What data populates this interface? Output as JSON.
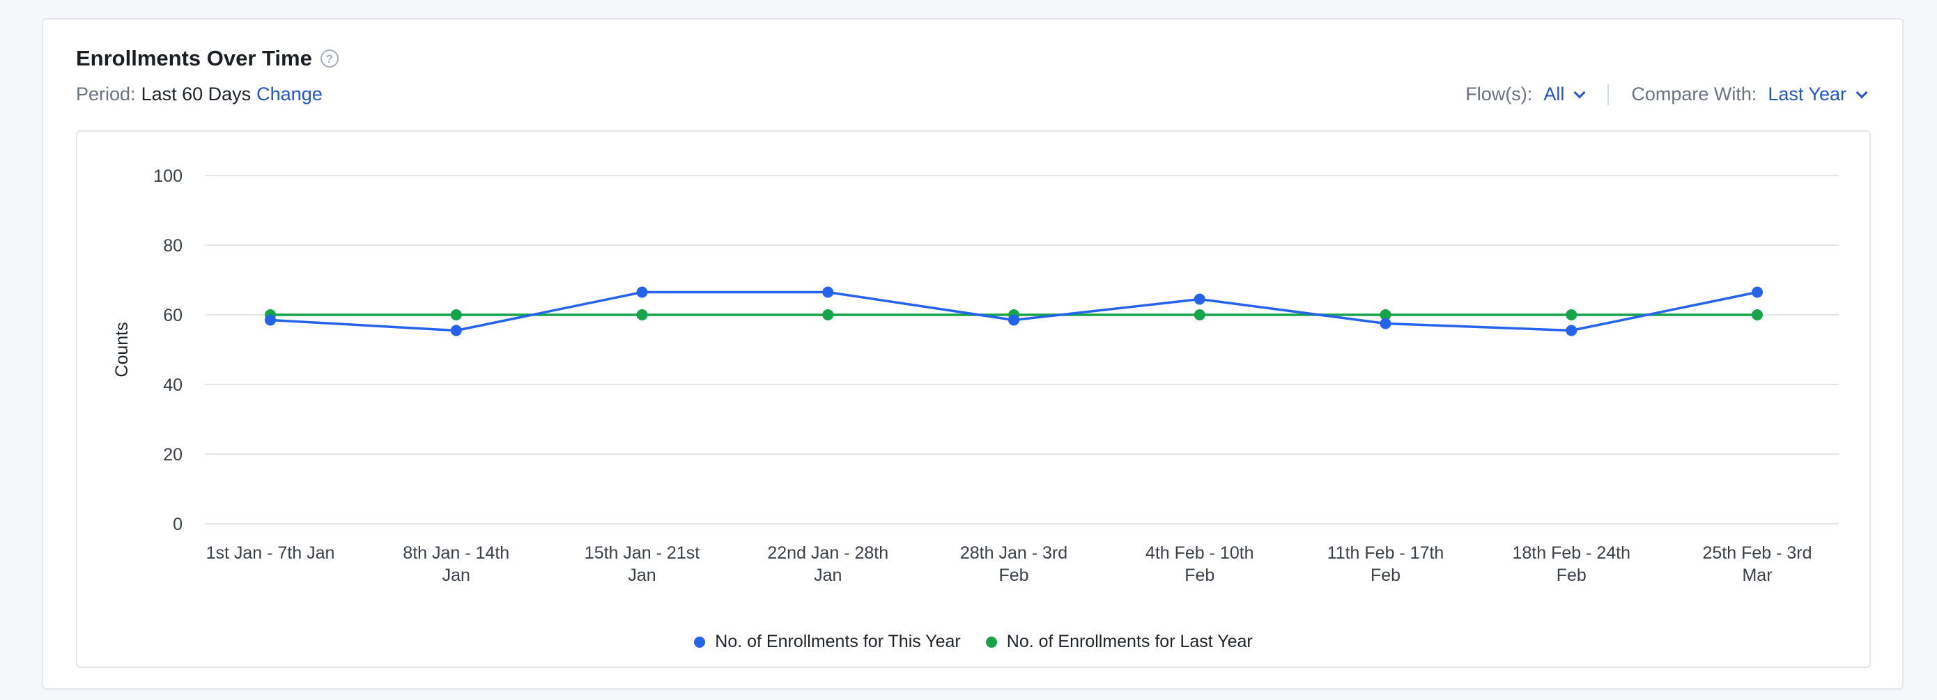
{
  "header": {
    "title": "Enrollments Over Time",
    "help_icon": "?",
    "period_label": "Period:",
    "period_value": "Last 60 Days",
    "period_change": "Change"
  },
  "filters": {
    "flows_label": "Flow(s):",
    "flows_value": "All",
    "compare_label": "Compare With:",
    "compare_value": "Last Year"
  },
  "colors": {
    "this_year": "#2563eb",
    "last_year": "#16a34a",
    "link": "#2155c9"
  },
  "chart_data": {
    "type": "line",
    "title": "",
    "xlabel": "",
    "ylabel": "Counts",
    "ylim": [
      0,
      100
    ],
    "yticks": [
      0,
      20,
      40,
      60,
      80,
      100
    ],
    "grid": true,
    "legend_position": "bottom-center",
    "categories": [
      [
        "1st Jan - 7th Jan"
      ],
      [
        "8th Jan - 14th",
        "Jan"
      ],
      [
        "15th Jan - 21st",
        "Jan"
      ],
      [
        "22nd Jan - 28th",
        "Jan"
      ],
      [
        "28th Jan - 3rd",
        "Feb"
      ],
      [
        "4th Feb - 10th",
        "Feb"
      ],
      [
        "11th Feb - 17th",
        "Feb"
      ],
      [
        "18th Feb - 24th",
        "Feb"
      ],
      [
        "25th Feb - 3rd",
        "Mar"
      ]
    ],
    "series": [
      {
        "name": "No. of Enrollments for This Year",
        "color": "#2563eb",
        "values": [
          58.5,
          55.5,
          66.5,
          66.5,
          58.5,
          64.5,
          57.5,
          55.5,
          66.5
        ]
      },
      {
        "name": "No. of Enrollments for Last Year",
        "color": "#16a34a",
        "values": [
          60,
          60,
          60,
          60,
          60,
          60,
          60,
          60,
          60
        ]
      }
    ]
  }
}
